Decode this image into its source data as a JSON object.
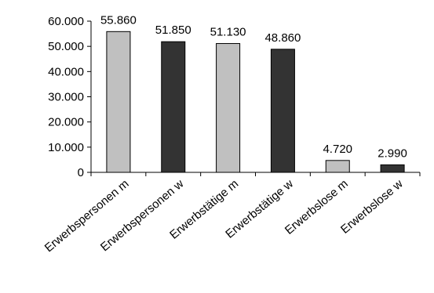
{
  "chart_data": {
    "type": "bar",
    "title": "",
    "xlabel": "",
    "ylabel": "",
    "categories": [
      "Erwerbspersonen m",
      "Erwerbspersonen w",
      "Erwerbstätige m",
      "Erwerbstätige w",
      "Erwerbslose m",
      "Erwerbslose w"
    ],
    "values": [
      55860,
      51850,
      51130,
      48860,
      4720,
      2990
    ],
    "data_labels": [
      "55.860",
      "51.850",
      "51.130",
      "48.860",
      "4.720",
      "2.990"
    ],
    "bar_colors": [
      "#c0c0c0",
      "#333333",
      "#c0c0c0",
      "#333333",
      "#c0c0c0",
      "#333333"
    ],
    "ylim": [
      0,
      60000
    ],
    "yticks": [
      0,
      10000,
      20000,
      30000,
      40000,
      50000,
      60000
    ],
    "ytick_labels": [
      "0",
      "10.000",
      "20.000",
      "30.000",
      "40.000",
      "50.000",
      "60.000"
    ],
    "grid": false,
    "legend": "none"
  }
}
